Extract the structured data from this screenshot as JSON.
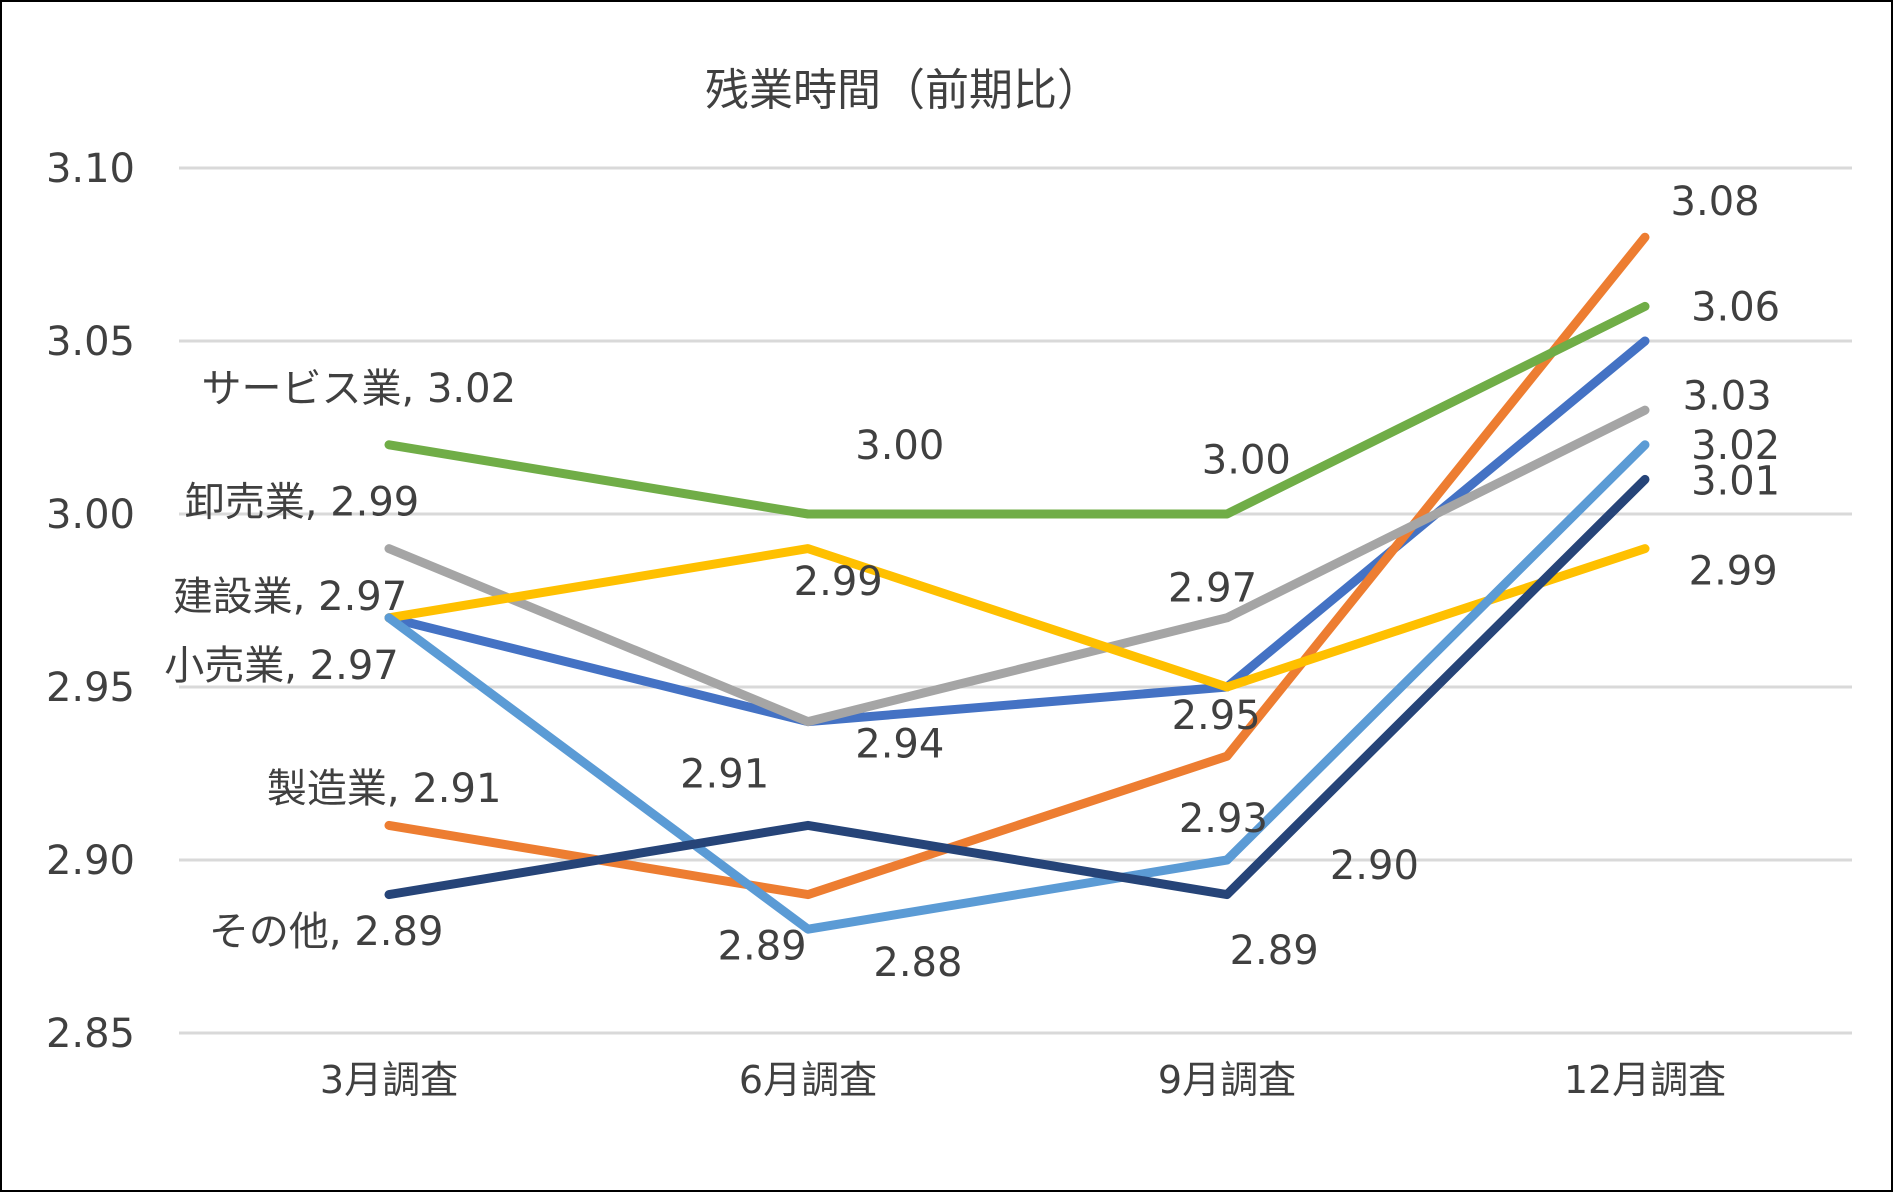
{
  "chart_data": {
    "type": "line",
    "title": "残業時間（前期比）",
    "categories": [
      "3月調査",
      "6月調査",
      "9月調査",
      "12月調査"
    ],
    "ylim": [
      2.85,
      3.1
    ],
    "yticks": [
      "2.85",
      "2.90",
      "2.95",
      "3.00",
      "3.05",
      "3.10"
    ],
    "grid": true,
    "legend": "none",
    "series": [
      {
        "name": "",
        "color": "#4472C4",
        "values": [
          2.97,
          2.94,
          2.95,
          3.05
        ],
        "labels": [
          "",
          "",
          "",
          ""
        ]
      },
      {
        "name": "製造業",
        "color": "#ED7D31",
        "values": [
          2.91,
          2.89,
          2.93,
          3.08
        ],
        "labels": [
          "製造業, 2.91",
          "2.89",
          "2.93",
          "3.08"
        ]
      },
      {
        "name": "卸売業",
        "color": "#A5A5A5",
        "values": [
          2.99,
          2.94,
          2.97,
          3.03
        ],
        "labels": [
          "卸売業, 2.99",
          "2.94",
          "2.97",
          "3.03"
        ]
      },
      {
        "name": "建設業",
        "color": "#FFC000",
        "values": [
          2.97,
          2.99,
          2.95,
          2.99
        ],
        "labels": [
          "建設業, 2.97",
          "2.99",
          "2.95",
          "2.99"
        ]
      },
      {
        "name": "小売業",
        "color": "#5B9BD5",
        "values": [
          2.97,
          2.88,
          2.9,
          3.02
        ],
        "labels": [
          "小売業, 2.97",
          "2.88",
          "2.90",
          "3.02"
        ]
      },
      {
        "name": "サービス業",
        "color": "#70AD47",
        "values": [
          3.02,
          3.0,
          3.0,
          3.06
        ],
        "labels": [
          "サービス業, 3.02",
          "3.00",
          "3.00",
          "3.06"
        ]
      },
      {
        "name": "その他",
        "color": "#264478",
        "values": [
          2.89,
          2.91,
          2.89,
          3.01
        ],
        "labels": [
          "その他, 2.89",
          "2.91",
          "2.89",
          "3.01"
        ]
      }
    ]
  }
}
